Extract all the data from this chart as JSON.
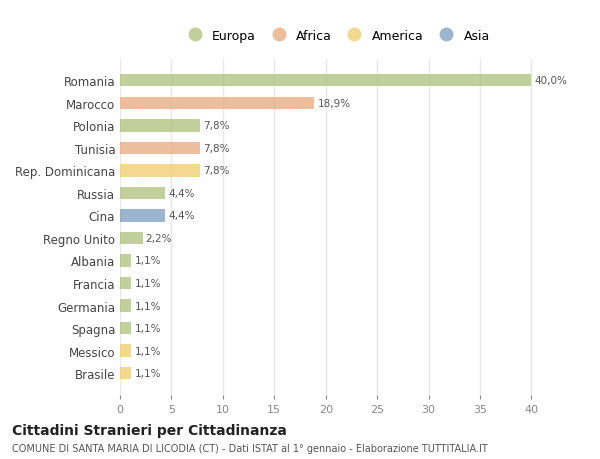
{
  "categories": [
    "Romania",
    "Marocco",
    "Polonia",
    "Tunisia",
    "Rep. Dominicana",
    "Russia",
    "Cina",
    "Regno Unito",
    "Albania",
    "Francia",
    "Germania",
    "Spagna",
    "Messico",
    "Brasile"
  ],
  "values": [
    40.0,
    18.9,
    7.8,
    7.8,
    7.8,
    4.4,
    4.4,
    2.2,
    1.1,
    1.1,
    1.1,
    1.1,
    1.1,
    1.1
  ],
  "labels": [
    "40,0%",
    "18,9%",
    "7,8%",
    "7,8%",
    "7,8%",
    "4,4%",
    "4,4%",
    "2,2%",
    "1,1%",
    "1,1%",
    "1,1%",
    "1,1%",
    "1,1%",
    "1,1%"
  ],
  "colors": [
    "#adc178",
    "#e8a87c",
    "#adc178",
    "#e8a87c",
    "#f0cc6a",
    "#adc178",
    "#7b9cbf",
    "#adc178",
    "#adc178",
    "#adc178",
    "#adc178",
    "#adc178",
    "#f0cc6a",
    "#f0cc6a"
  ],
  "legend": {
    "Europa": "#adc178",
    "Africa": "#e8a87c",
    "America": "#f0cc6a",
    "Asia": "#7b9cbf"
  },
  "title": "Cittadini Stranieri per Cittadinanza",
  "subtitle": "COMUNE DI SANTA MARIA DI LICODIA (CT) - Dati ISTAT al 1° gennaio - Elaborazione TUTTITALIA.IT",
  "xlim": [
    0,
    42
  ],
  "xticks": [
    0,
    5,
    10,
    15,
    20,
    25,
    30,
    35,
    40
  ],
  "background_color": "#ffffff",
  "grid_color": "#e8e8e8",
  "bar_height": 0.55,
  "alpha": 0.75
}
